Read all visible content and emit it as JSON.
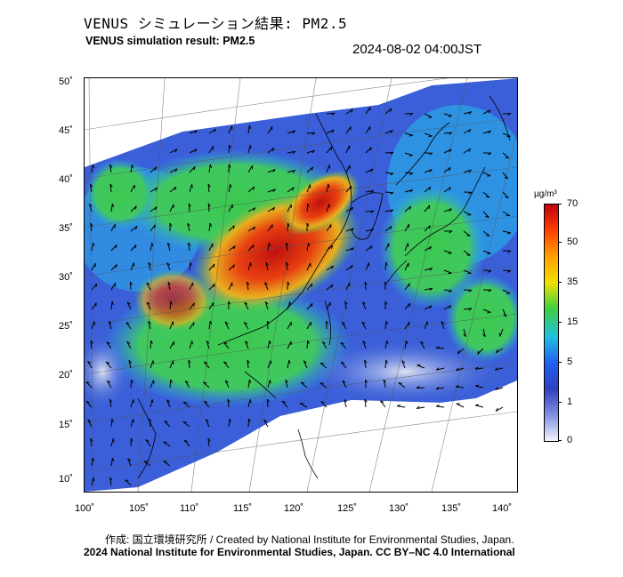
{
  "header": {
    "title_jp": "VENUS シミュレーション結果: PM2.5",
    "title_en": "VENUS simulation result: PM2.5",
    "timestamp": "2024-08-02 04:00JST"
  },
  "map": {
    "lat_labels": [
      "50˚",
      "45˚",
      "40˚",
      "35˚",
      "30˚",
      "25˚",
      "20˚",
      "15˚",
      "10˚"
    ],
    "lon_labels": [
      "100˚",
      "105˚",
      "110˚",
      "115˚",
      "120˚",
      "125˚",
      "130˚",
      "135˚",
      "140˚"
    ],
    "layers": [
      "pm25-concentration-field",
      "wind-vectors",
      "coastlines",
      "graticule"
    ],
    "colors": {
      "very_low": "#e8ecf6",
      "low": "#3a5fd8",
      "mid_low": "#2aa8e8",
      "mid": "#3cc850",
      "high": "#e8d020",
      "very_high": "#e84010",
      "max": "#c01010"
    }
  },
  "colorbar": {
    "unit": "µg/m³",
    "ticks": [
      "70",
      "50",
      "35",
      "15",
      "5",
      "1",
      "0"
    ],
    "stops": [
      "#c00010",
      "#ff4000",
      "#ffa000",
      "#f0e000",
      "#40d040",
      "#20c0e0",
      "#2060f0",
      "#3040c0",
      "#8090e0",
      "#f4f4ff"
    ]
  },
  "footer": {
    "credit_line": "作成: 国立環境研究所 / Created by National Institute for Environmental Studies, Japan.",
    "copyright_line": "2024 National Institute for Environmental Studies, Japan. CC BY–NC 4.0 International"
  }
}
